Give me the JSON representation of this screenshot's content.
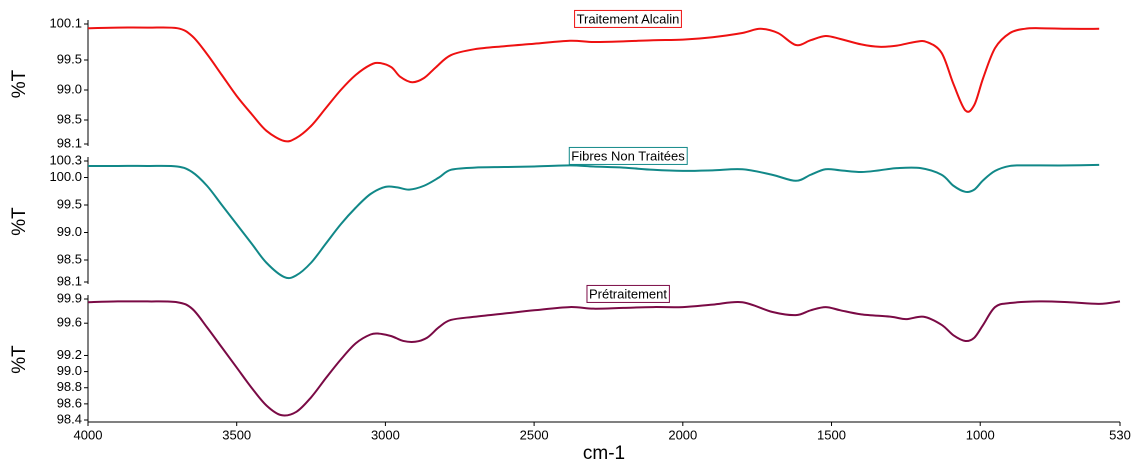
{
  "chart_data": [
    {
      "type": "line",
      "ylabel": "%T",
      "xlim": [
        4000,
        530
      ],
      "ylim": [
        98.1,
        100.1
      ],
      "yticks": [
        100.1,
        99.5,
        {
          "value": 99.0,
          "label": "99.0"
        },
        98.5,
        98.1
      ],
      "series": [
        {
          "name": "Traitement Alcalin",
          "color": "#ee1111",
          "x": [
            4000,
            3900,
            3800,
            3700,
            3650,
            3600,
            3550,
            3500,
            3450,
            3400,
            3340,
            3300,
            3250,
            3200,
            3150,
            3100,
            3050,
            3020,
            2980,
            2950,
            2910,
            2870,
            2830,
            2780,
            2700,
            2600,
            2500,
            2380,
            2300,
            2200,
            2100,
            2000,
            1900,
            1800,
            1740,
            1680,
            1620,
            1570,
            1520,
            1470,
            1400,
            1340,
            1280,
            1220,
            1180,
            1130,
            1090,
            1050,
            1020,
            990,
            950,
            900,
            850,
            800,
            700,
            600
          ],
          "values": [
            100.03,
            100.04,
            100.04,
            100.03,
            99.9,
            99.6,
            99.25,
            98.9,
            98.6,
            98.32,
            98.15,
            98.2,
            98.4,
            98.7,
            99.0,
            99.25,
            99.42,
            99.45,
            99.38,
            99.22,
            99.13,
            99.2,
            99.38,
            99.58,
            99.68,
            99.73,
            99.77,
            99.82,
            99.8,
            99.81,
            99.83,
            99.84,
            99.88,
            99.95,
            100.02,
            99.95,
            99.75,
            99.83,
            99.9,
            99.85,
            99.76,
            99.72,
            99.74,
            99.8,
            99.8,
            99.62,
            99.1,
            98.66,
            98.75,
            99.2,
            99.7,
            99.95,
            100.02,
            100.03,
            100.02,
            100.02
          ]
        }
      ]
    },
    {
      "type": "line",
      "ylabel": "%T",
      "xlim": [
        4000,
        530
      ],
      "ylim": [
        98.1,
        100.3
      ],
      "yticks": [
        100.3,
        {
          "value": 100.0,
          "label": "100.0"
        },
        99.5,
        {
          "value": 99.0,
          "label": "99.0"
        },
        98.5,
        98.1
      ],
      "series": [
        {
          "name": "Fibres Non Traitées",
          "color": "#118888",
          "x": [
            4000,
            3900,
            3800,
            3700,
            3650,
            3600,
            3550,
            3500,
            3450,
            3400,
            3340,
            3300,
            3250,
            3200,
            3150,
            3100,
            3050,
            3000,
            2960,
            2920,
            2870,
            2820,
            2780,
            2700,
            2600,
            2500,
            2380,
            2300,
            2200,
            2100,
            2000,
            1900,
            1800,
            1700,
            1620,
            1570,
            1520,
            1470,
            1400,
            1340,
            1280,
            1200,
            1130,
            1090,
            1050,
            1020,
            990,
            950,
            900,
            850,
            800,
            700,
            600
          ],
          "values": [
            100.21,
            100.21,
            100.21,
            100.2,
            100.1,
            99.85,
            99.5,
            99.15,
            98.8,
            98.45,
            98.19,
            98.22,
            98.45,
            98.8,
            99.15,
            99.45,
            99.7,
            99.83,
            99.82,
            99.78,
            99.85,
            100.0,
            100.14,
            100.18,
            100.19,
            100.2,
            100.22,
            100.2,
            100.18,
            100.14,
            100.12,
            100.13,
            100.15,
            100.05,
            99.94,
            100.05,
            100.15,
            100.13,
            100.1,
            100.13,
            100.17,
            100.17,
            100.05,
            99.85,
            99.74,
            99.78,
            99.95,
            100.12,
            100.21,
            100.22,
            100.22,
            100.22,
            100.23
          ]
        }
      ]
    },
    {
      "type": "line",
      "ylabel": "%T",
      "xlabel": "cm-1",
      "xlim": [
        4000,
        530
      ],
      "xticks": [
        4000,
        3500,
        3000,
        2500,
        2000,
        1500,
        1000,
        530
      ],
      "ylim": [
        98.4,
        99.9
      ],
      "yticks": [
        99.9,
        99.6,
        99.2,
        {
          "value": 99.0,
          "label": "99.0"
        },
        98.8,
        98.6,
        98.4
      ],
      "series": [
        {
          "name": "Prétraitement",
          "color": "#7a0a45",
          "x": [
            4000,
            3900,
            3800,
            3700,
            3650,
            3600,
            3550,
            3500,
            3450,
            3400,
            3350,
            3300,
            3250,
            3200,
            3150,
            3100,
            3050,
            3020,
            2980,
            2940,
            2900,
            2860,
            2820,
            2780,
            2700,
            2600,
            2500,
            2380,
            2300,
            2200,
            2100,
            2000,
            1900,
            1800,
            1700,
            1620,
            1570,
            1520,
            1470,
            1400,
            1300,
            1250,
            1190,
            1130,
            1090,
            1050,
            1020,
            990,
            950,
            900,
            800,
            700,
            600,
            530
          ],
          "values": [
            99.86,
            99.87,
            99.87,
            99.86,
            99.78,
            99.55,
            99.3,
            99.05,
            98.8,
            98.58,
            98.46,
            98.5,
            98.68,
            98.92,
            99.15,
            99.35,
            99.46,
            99.47,
            99.44,
            99.38,
            99.37,
            99.42,
            99.55,
            99.64,
            99.68,
            99.72,
            99.76,
            99.8,
            99.78,
            99.79,
            99.8,
            99.8,
            99.83,
            99.86,
            99.74,
            99.7,
            99.76,
            99.8,
            99.76,
            99.71,
            99.68,
            99.65,
            99.68,
            99.58,
            99.45,
            99.38,
            99.42,
            99.58,
            99.8,
            99.85,
            99.87,
            99.86,
            99.84,
            99.87
          ]
        }
      ]
    }
  ]
}
